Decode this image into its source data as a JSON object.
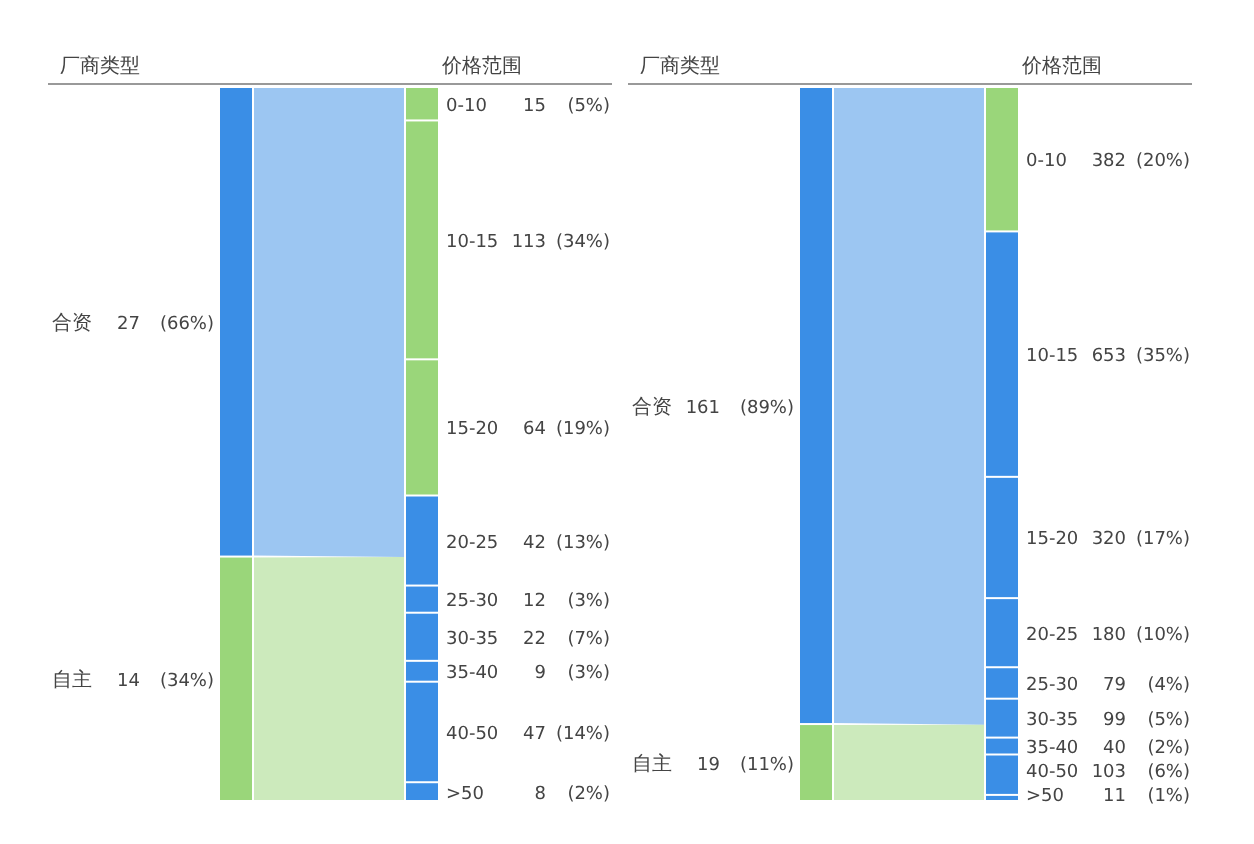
{
  "chart_data": [
    {
      "type": "other",
      "title": "厂商类型",
      "categories": [
        "合资",
        "自主"
      ],
      "values": [
        27,
        14
      ],
      "data_labels": true,
      "annotations": [
        "(66%)",
        "(34%)"
      ],
      "colors": [
        "#3a8ee6",
        "#9ad67a"
      ]
    },
    {
      "type": "other",
      "title": "价格范围",
      "categories": [
        "0-10",
        "10-15",
        "15-20",
        "20-25",
        "25-30",
        "30-35",
        "35-40",
        "40-50",
        ">50"
      ],
      "values": [
        15,
        113,
        64,
        42,
        12,
        22,
        9,
        47,
        8
      ],
      "data_labels": true,
      "annotations": [
        "(5%)",
        "(34%)",
        "(19%)",
        "(13%)",
        "(3%)",
        "(7%)",
        "(3%)",
        "(14%)",
        "(2%)"
      ],
      "colors": [
        "#9ad67a",
        "#9ad67a",
        "#9ad67a",
        "#3a8ee6",
        "#3a8ee6",
        "#3a8ee6",
        "#3a8ee6",
        "#3a8ee6",
        "#3a8ee6"
      ]
    },
    {
      "type": "other",
      "title": "厂商类型",
      "categories": [
        "合资",
        "自主"
      ],
      "values": [
        161,
        19
      ],
      "data_labels": true,
      "annotations": [
        "(89%)",
        "(11%)"
      ],
      "colors": [
        "#3a8ee6",
        "#9ad67a"
      ]
    },
    {
      "type": "other",
      "title": "价格范围",
      "categories": [
        "0-10",
        "10-15",
        "15-20",
        "20-25",
        "25-30",
        "30-35",
        "35-40",
        "40-50",
        ">50"
      ],
      "values": [
        382,
        653,
        320,
        180,
        79,
        99,
        40,
        103,
        11
      ],
      "data_labels": true,
      "annotations": [
        "(20%)",
        "(35%)",
        "(17%)",
        "(10%)",
        "(4%)",
        "(5%)",
        "(2%)",
        "(6%)",
        "(1%)"
      ],
      "colors": [
        "#9ad67a",
        "#3a8ee6",
        "#3a8ee6",
        "#3a8ee6",
        "#3a8ee6",
        "#3a8ee6",
        "#3a8ee6",
        "#3a8ee6",
        "#3a8ee6"
      ]
    }
  ]
}
